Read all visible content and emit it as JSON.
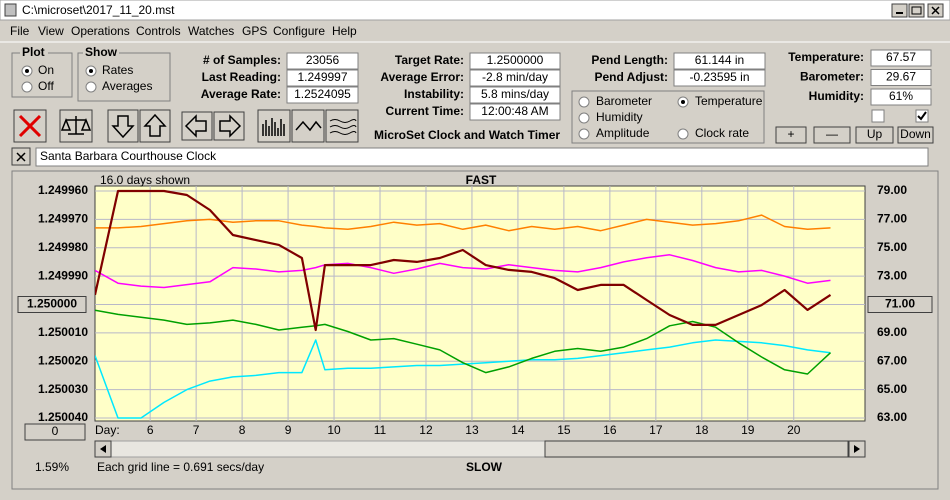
{
  "window": {
    "title": "C:\\microset\\2017_11_20.mst"
  },
  "menu": [
    "File",
    "View",
    "Operations",
    "Controls",
    "Watches",
    "GPS",
    "Configure",
    "Help"
  ],
  "plot": {
    "label": "Plot",
    "options": [
      "On",
      "Off"
    ],
    "selected": 0
  },
  "show": {
    "label": "Show",
    "options": [
      "Rates",
      "Averages"
    ],
    "selected": 0
  },
  "stats": [
    {
      "label": "# of Samples:",
      "value": "23056"
    },
    {
      "label": "Last Reading:",
      "value": "1.249997"
    },
    {
      "label": "Average Rate:",
      "value": "1.2524095"
    }
  ],
  "timing": [
    {
      "label": "Target Rate:",
      "value": "1.2500000"
    },
    {
      "label": "Average Error:",
      "value": "-2.8 min/day"
    },
    {
      "label": "Instability:",
      "value": "5.8 mins/day"
    },
    {
      "label": "Current Time:",
      "value": "12:00:48 AM"
    }
  ],
  "pendulum": [
    {
      "label": "Pend Length:",
      "value": "61.144 in"
    },
    {
      "label": "Pend Adjust:",
      "value": "-0.23595 in"
    }
  ],
  "environment": [
    {
      "label": "Temperature:",
      "value": "67.57"
    },
    {
      "label": "Barometer:",
      "value": "29.67"
    },
    {
      "label": "Humidity:",
      "value": "61%"
    }
  ],
  "checkboxes": [
    false,
    true
  ],
  "buttons": [
    "+",
    "—",
    "Up",
    "Down"
  ],
  "app_title": "MicroSet Clock and Watch Timer",
  "description": "Santa Barbara Courthouse Clock",
  "chart_data": {
    "type": "line",
    "days_shown": "16.0 days shown",
    "top_label": "FAST",
    "bottom_label": "SLOW",
    "xlabel": "Day:",
    "grid_note": "Each grid line = 0.691 secs/day",
    "percent": "1.59%",
    "zero_button": "0",
    "grid": true,
    "selected_series": 2,
    "x": [
      4.8,
      5.3,
      5.8,
      6.3,
      6.8,
      7.3,
      7.8,
      8.3,
      8.8,
      9.3,
      9.6,
      9.8,
      10.3,
      10.8,
      11.3,
      11.8,
      12.3,
      12.8,
      13.3,
      13.8,
      14.3,
      14.8,
      15.3,
      15.8,
      16.3,
      16.8,
      17.3,
      17.8,
      18.3,
      18.8,
      19.3,
      19.8,
      20.3,
      20.8
    ],
    "xlim": [
      4.8,
      21.55
    ],
    "xticks": [
      6,
      7,
      8,
      9,
      10,
      11,
      12,
      13,
      14,
      15,
      16,
      17,
      18,
      19,
      20
    ],
    "ylim": [
      1.24996,
      1.25004
    ],
    "y_inverted": true,
    "yticks": [
      {
        "value": 1.24996,
        "label": "1.249960"
      },
      {
        "value": 1.24997,
        "label": "1.249970"
      },
      {
        "value": 1.24998,
        "label": "1.249980"
      },
      {
        "value": 1.24999,
        "label": "1.249990"
      },
      {
        "value": 1.25,
        "label": "1.250000"
      },
      {
        "value": 1.25001,
        "label": "1.250010"
      },
      {
        "value": 1.25002,
        "label": "1.250020"
      },
      {
        "value": 1.25003,
        "label": "1.250030"
      },
      {
        "value": 1.25004,
        "label": "1.250040"
      }
    ],
    "y2lim": [
      63,
      79
    ],
    "y2ticks": [
      {
        "value": 79,
        "label": "79.00"
      },
      {
        "value": 77,
        "label": "77.00"
      },
      {
        "value": 75,
        "label": "75.00"
      },
      {
        "value": 73,
        "label": "73.00"
      },
      {
        "value": 71,
        "label": "71.00"
      },
      {
        "value": 69,
        "label": "69.00"
      },
      {
        "value": 67,
        "label": "67.00"
      },
      {
        "value": 65,
        "label": "65.00"
      },
      {
        "value": 63,
        "label": "63.00"
      }
    ],
    "series": [
      {
        "name": "Clock rate",
        "color": "#800000",
        "values": [
          1.2499966,
          1.24996,
          1.24996,
          1.24996,
          1.2499614,
          1.2499667,
          1.2499755,
          1.2499773,
          1.249979,
          1.2499836,
          1.250009,
          1.2499861,
          1.2499861,
          1.2499861,
          1.2499843,
          1.249985,
          1.2499836,
          1.2499808,
          1.2499861,
          1.2499878,
          1.2499885,
          1.2499907,
          1.2499949,
          1.2499931,
          1.2499931,
          1.2499984,
          1.2500037,
          1.2500072,
          1.2500072,
          1.2500037,
          1.2500002,
          1.2499949,
          1.2500019,
          1.2499966
        ]
      },
      {
        "name": "Barometer",
        "color": "#ff8000",
        "axis": "y2",
        "values": [
          76.4,
          76.4,
          76.5,
          76.7,
          76.9,
          77.0,
          76.8,
          76.9,
          76.9,
          76.6,
          76.5,
          76.4,
          76.3,
          76.5,
          76.8,
          76.6,
          76.7,
          76.3,
          76.6,
          76.2,
          76.5,
          76.3,
          76.5,
          76.2,
          76.6,
          77.0,
          76.8,
          76.6,
          76.7,
          76.9,
          77.3,
          76.5,
          76.3,
          76.4
        ]
      },
      {
        "name": "Temperature",
        "color": "#00a000",
        "axis": "y2",
        "values": [
          70.6,
          70.3,
          70.1,
          69.9,
          69.6,
          69.7,
          69.9,
          69.6,
          69.2,
          69.4,
          69.5,
          69.6,
          69.1,
          68.5,
          68.6,
          68.2,
          67.8,
          66.9,
          66.2,
          66.6,
          67.2,
          67.7,
          67.9,
          67.7,
          68.0,
          68.6,
          69.5,
          69.8,
          69.4,
          68.3,
          67.3,
          66.4,
          66.1,
          67.6
        ]
      },
      {
        "name": "Humidity",
        "color": "#ff00ff",
        "axis": "y2",
        "values": [
          73.4,
          72.5,
          72.3,
          72.2,
          72.4,
          72.6,
          73.6,
          73.5,
          73.3,
          73.4,
          73.6,
          73.8,
          73.9,
          73.6,
          73.2,
          73.5,
          73.9,
          73.6,
          73.5,
          73.8,
          73.6,
          73.4,
          73.3,
          73.6,
          74.0,
          74.3,
          74.5,
          74.1,
          73.6,
          73.3,
          73.4,
          73.0,
          72.5,
          72.7
        ]
      },
      {
        "name": "Amplitude",
        "color": "#00e8ff",
        "axis": "y2",
        "values": [
          67.4,
          63.0,
          63.0,
          64.1,
          65.0,
          65.6,
          65.9,
          66.0,
          66.2,
          66.2,
          68.5,
          66.4,
          66.5,
          66.5,
          66.6,
          66.7,
          66.7,
          66.8,
          66.9,
          67.0,
          67.1,
          67.1,
          67.2,
          67.4,
          67.6,
          67.8,
          68.0,
          68.3,
          68.5,
          68.4,
          68.3,
          68.1,
          67.8,
          67.6
        ]
      }
    ]
  }
}
